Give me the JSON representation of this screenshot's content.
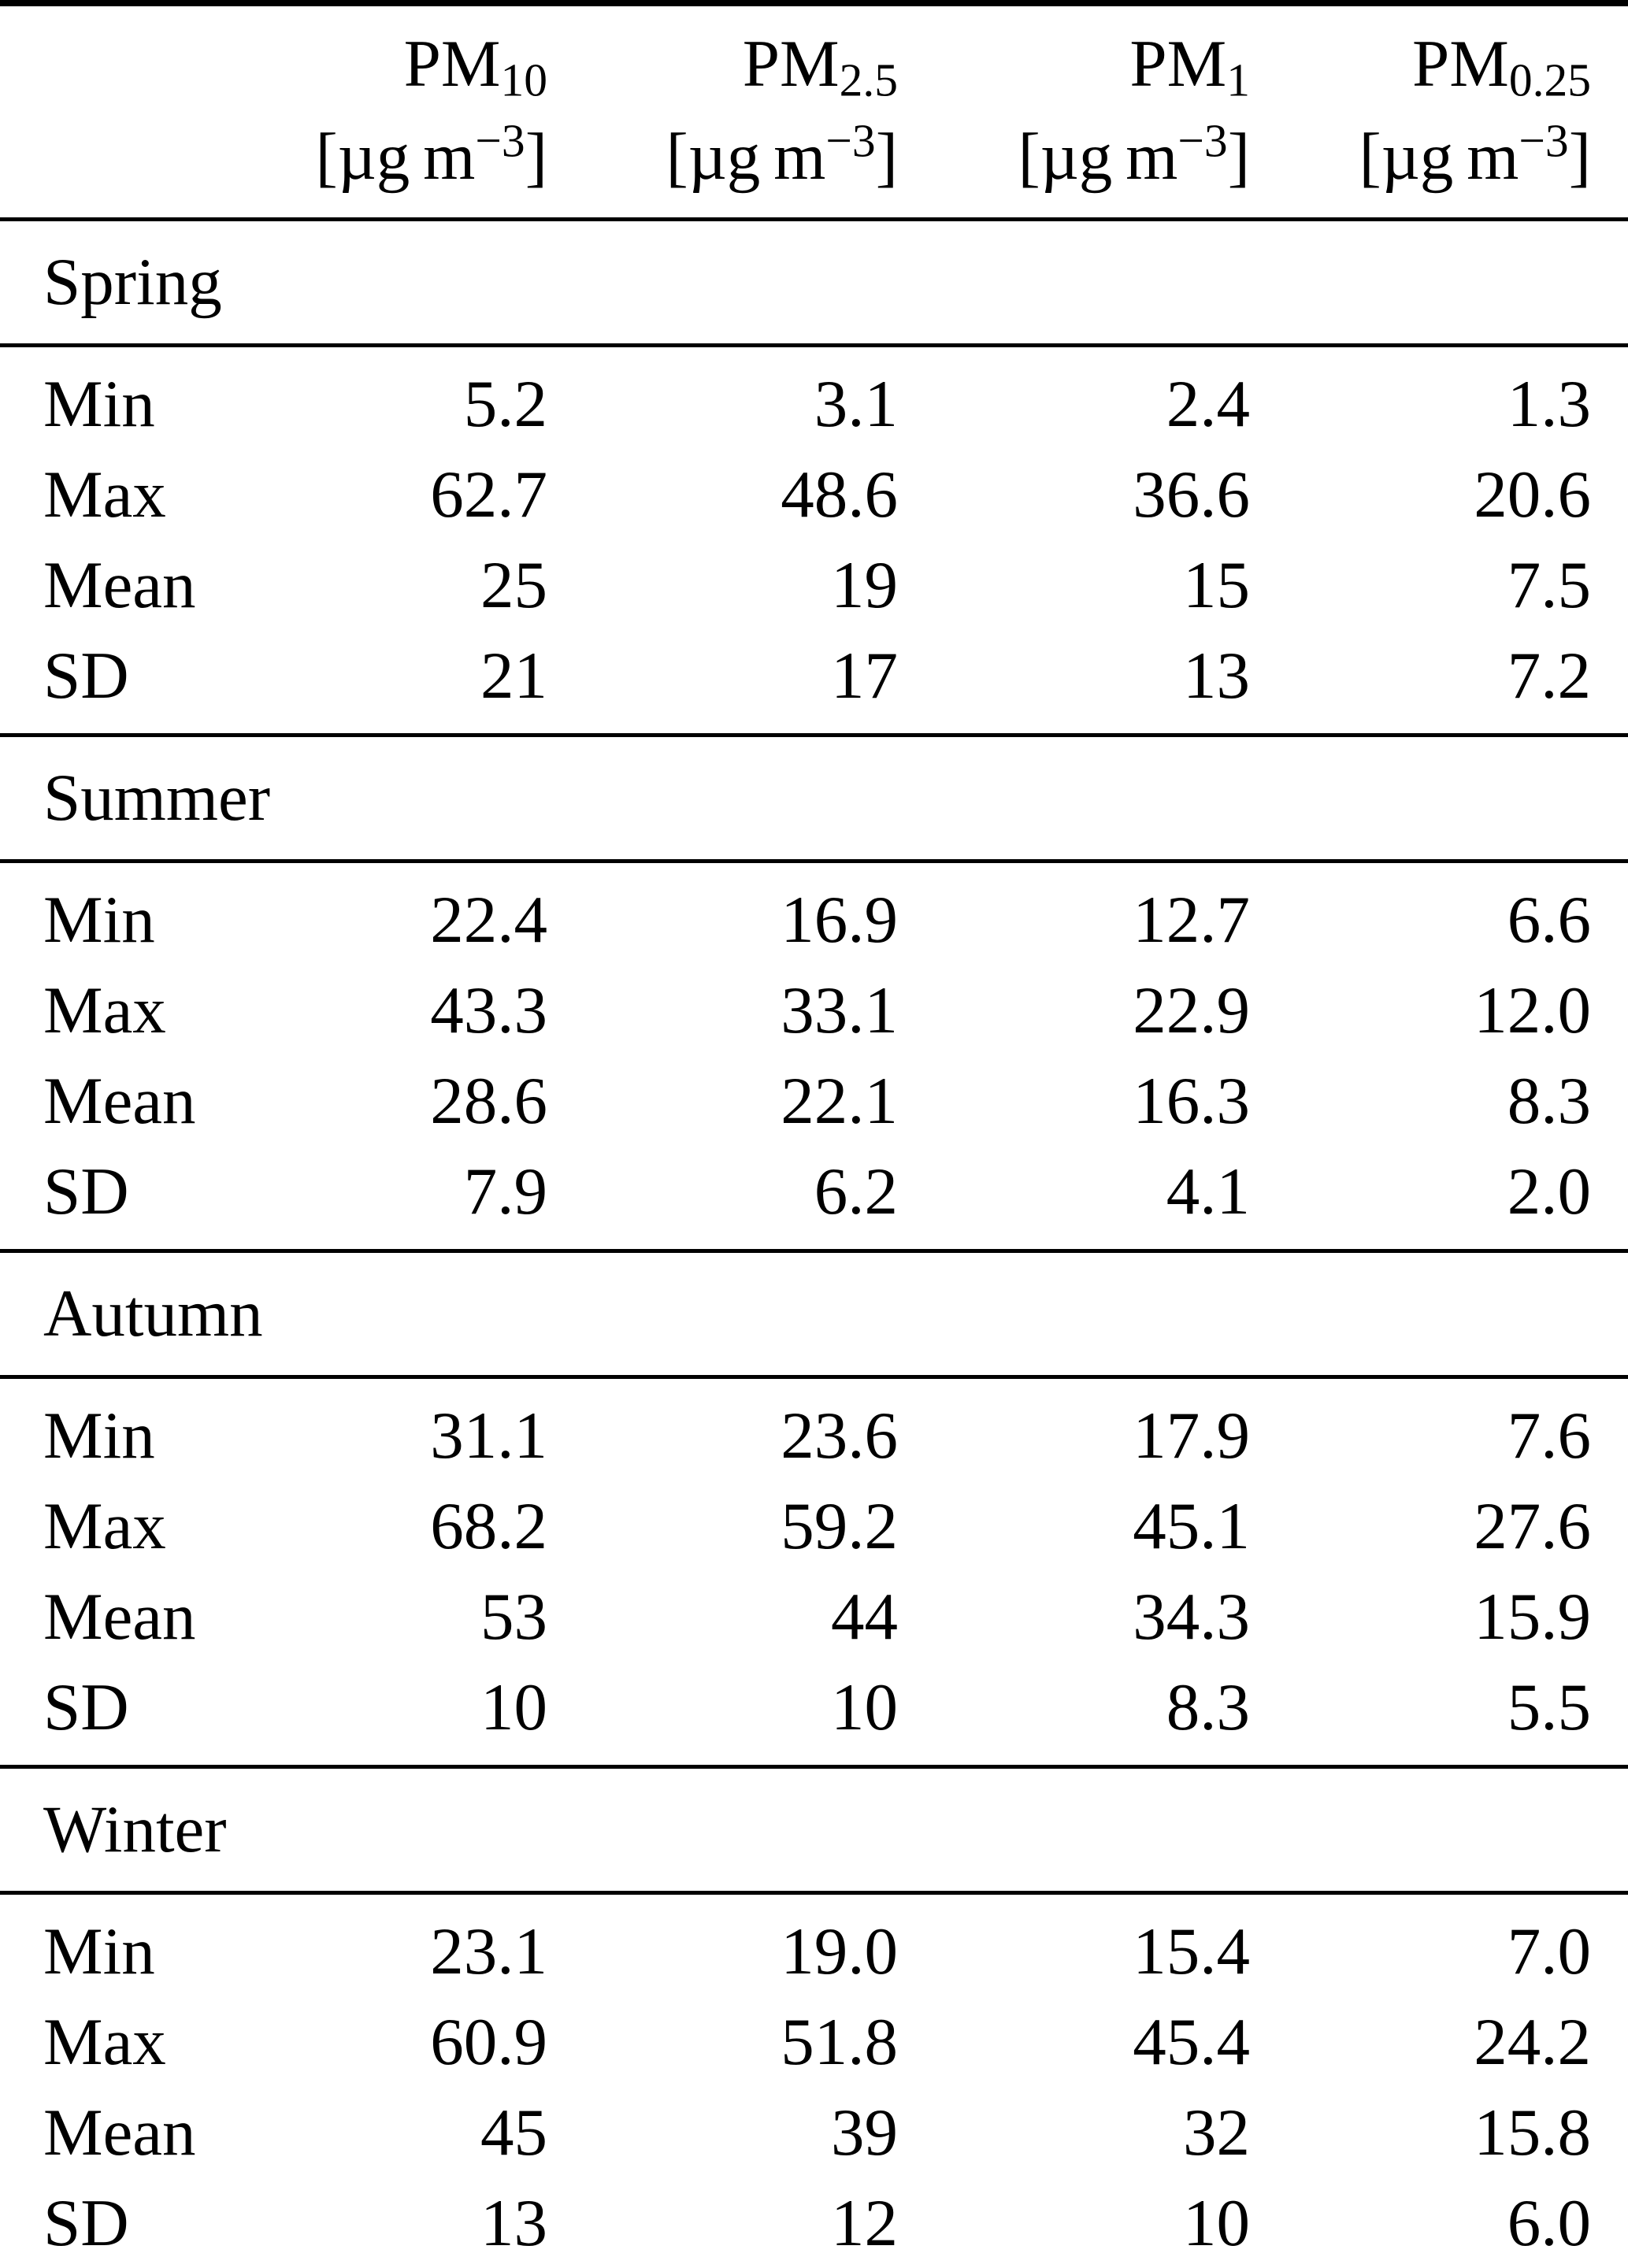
{
  "colors": {
    "background": "#ffffff",
    "text": "#000000",
    "rule": "#000000"
  },
  "table": {
    "columns": [
      {
        "prefix": "PM",
        "sub": "10",
        "unit_pre": "[µg m",
        "unit_sup": "−3",
        "unit_post": "]"
      },
      {
        "prefix": "PM",
        "sub": "2.5",
        "unit_pre": "[µg m",
        "unit_sup": "−3",
        "unit_post": "]"
      },
      {
        "prefix": "PM",
        "sub": "1",
        "unit_pre": "[µg m",
        "unit_sup": "−3",
        "unit_post": "]"
      },
      {
        "prefix": "PM",
        "sub": "0.25",
        "unit_pre": "[µg m",
        "unit_sup": "−3",
        "unit_post": "]"
      }
    ],
    "seasons": [
      {
        "label": "Spring",
        "rows": [
          {
            "label": "Min",
            "values": [
              "5.2",
              "3.1",
              "2.4",
              "1.3"
            ]
          },
          {
            "label": "Max",
            "values": [
              "62.7",
              "48.6",
              "36.6",
              "20.6"
            ]
          },
          {
            "label": "Mean",
            "values": [
              "25",
              "19",
              "15",
              "7.5"
            ]
          },
          {
            "label": "SD",
            "values": [
              "21",
              "17",
              "13",
              "7.2"
            ]
          }
        ]
      },
      {
        "label": "Summer",
        "rows": [
          {
            "label": "Min",
            "values": [
              "22.4",
              "16.9",
              "12.7",
              "6.6"
            ]
          },
          {
            "label": "Max",
            "values": [
              "43.3",
              "33.1",
              "22.9",
              "12.0"
            ]
          },
          {
            "label": "Mean",
            "values": [
              "28.6",
              "22.1",
              "16.3",
              "8.3"
            ]
          },
          {
            "label": "SD",
            "values": [
              "7.9",
              "6.2",
              "4.1",
              "2.0"
            ]
          }
        ]
      },
      {
        "label": "Autumn",
        "rows": [
          {
            "label": "Min",
            "values": [
              "31.1",
              "23.6",
              "17.9",
              "7.6"
            ]
          },
          {
            "label": "Max",
            "values": [
              "68.2",
              "59.2",
              "45.1",
              "27.6"
            ]
          },
          {
            "label": "Mean",
            "values": [
              "53",
              "44",
              "34.3",
              "15.9"
            ]
          },
          {
            "label": "SD",
            "values": [
              "10",
              "10",
              "8.3",
              "5.5"
            ]
          }
        ]
      },
      {
        "label": "Winter",
        "rows": [
          {
            "label": "Min",
            "values": [
              "23.1",
              "19.0",
              "15.4",
              "7.0"
            ]
          },
          {
            "label": "Max",
            "values": [
              "60.9",
              "51.8",
              "45.4",
              "24.2"
            ]
          },
          {
            "label": "Mean",
            "values": [
              "45",
              "39",
              "32",
              "15.8"
            ]
          },
          {
            "label": "SD",
            "values": [
              "13",
              "12",
              "10",
              "6.0"
            ]
          }
        ]
      }
    ]
  }
}
